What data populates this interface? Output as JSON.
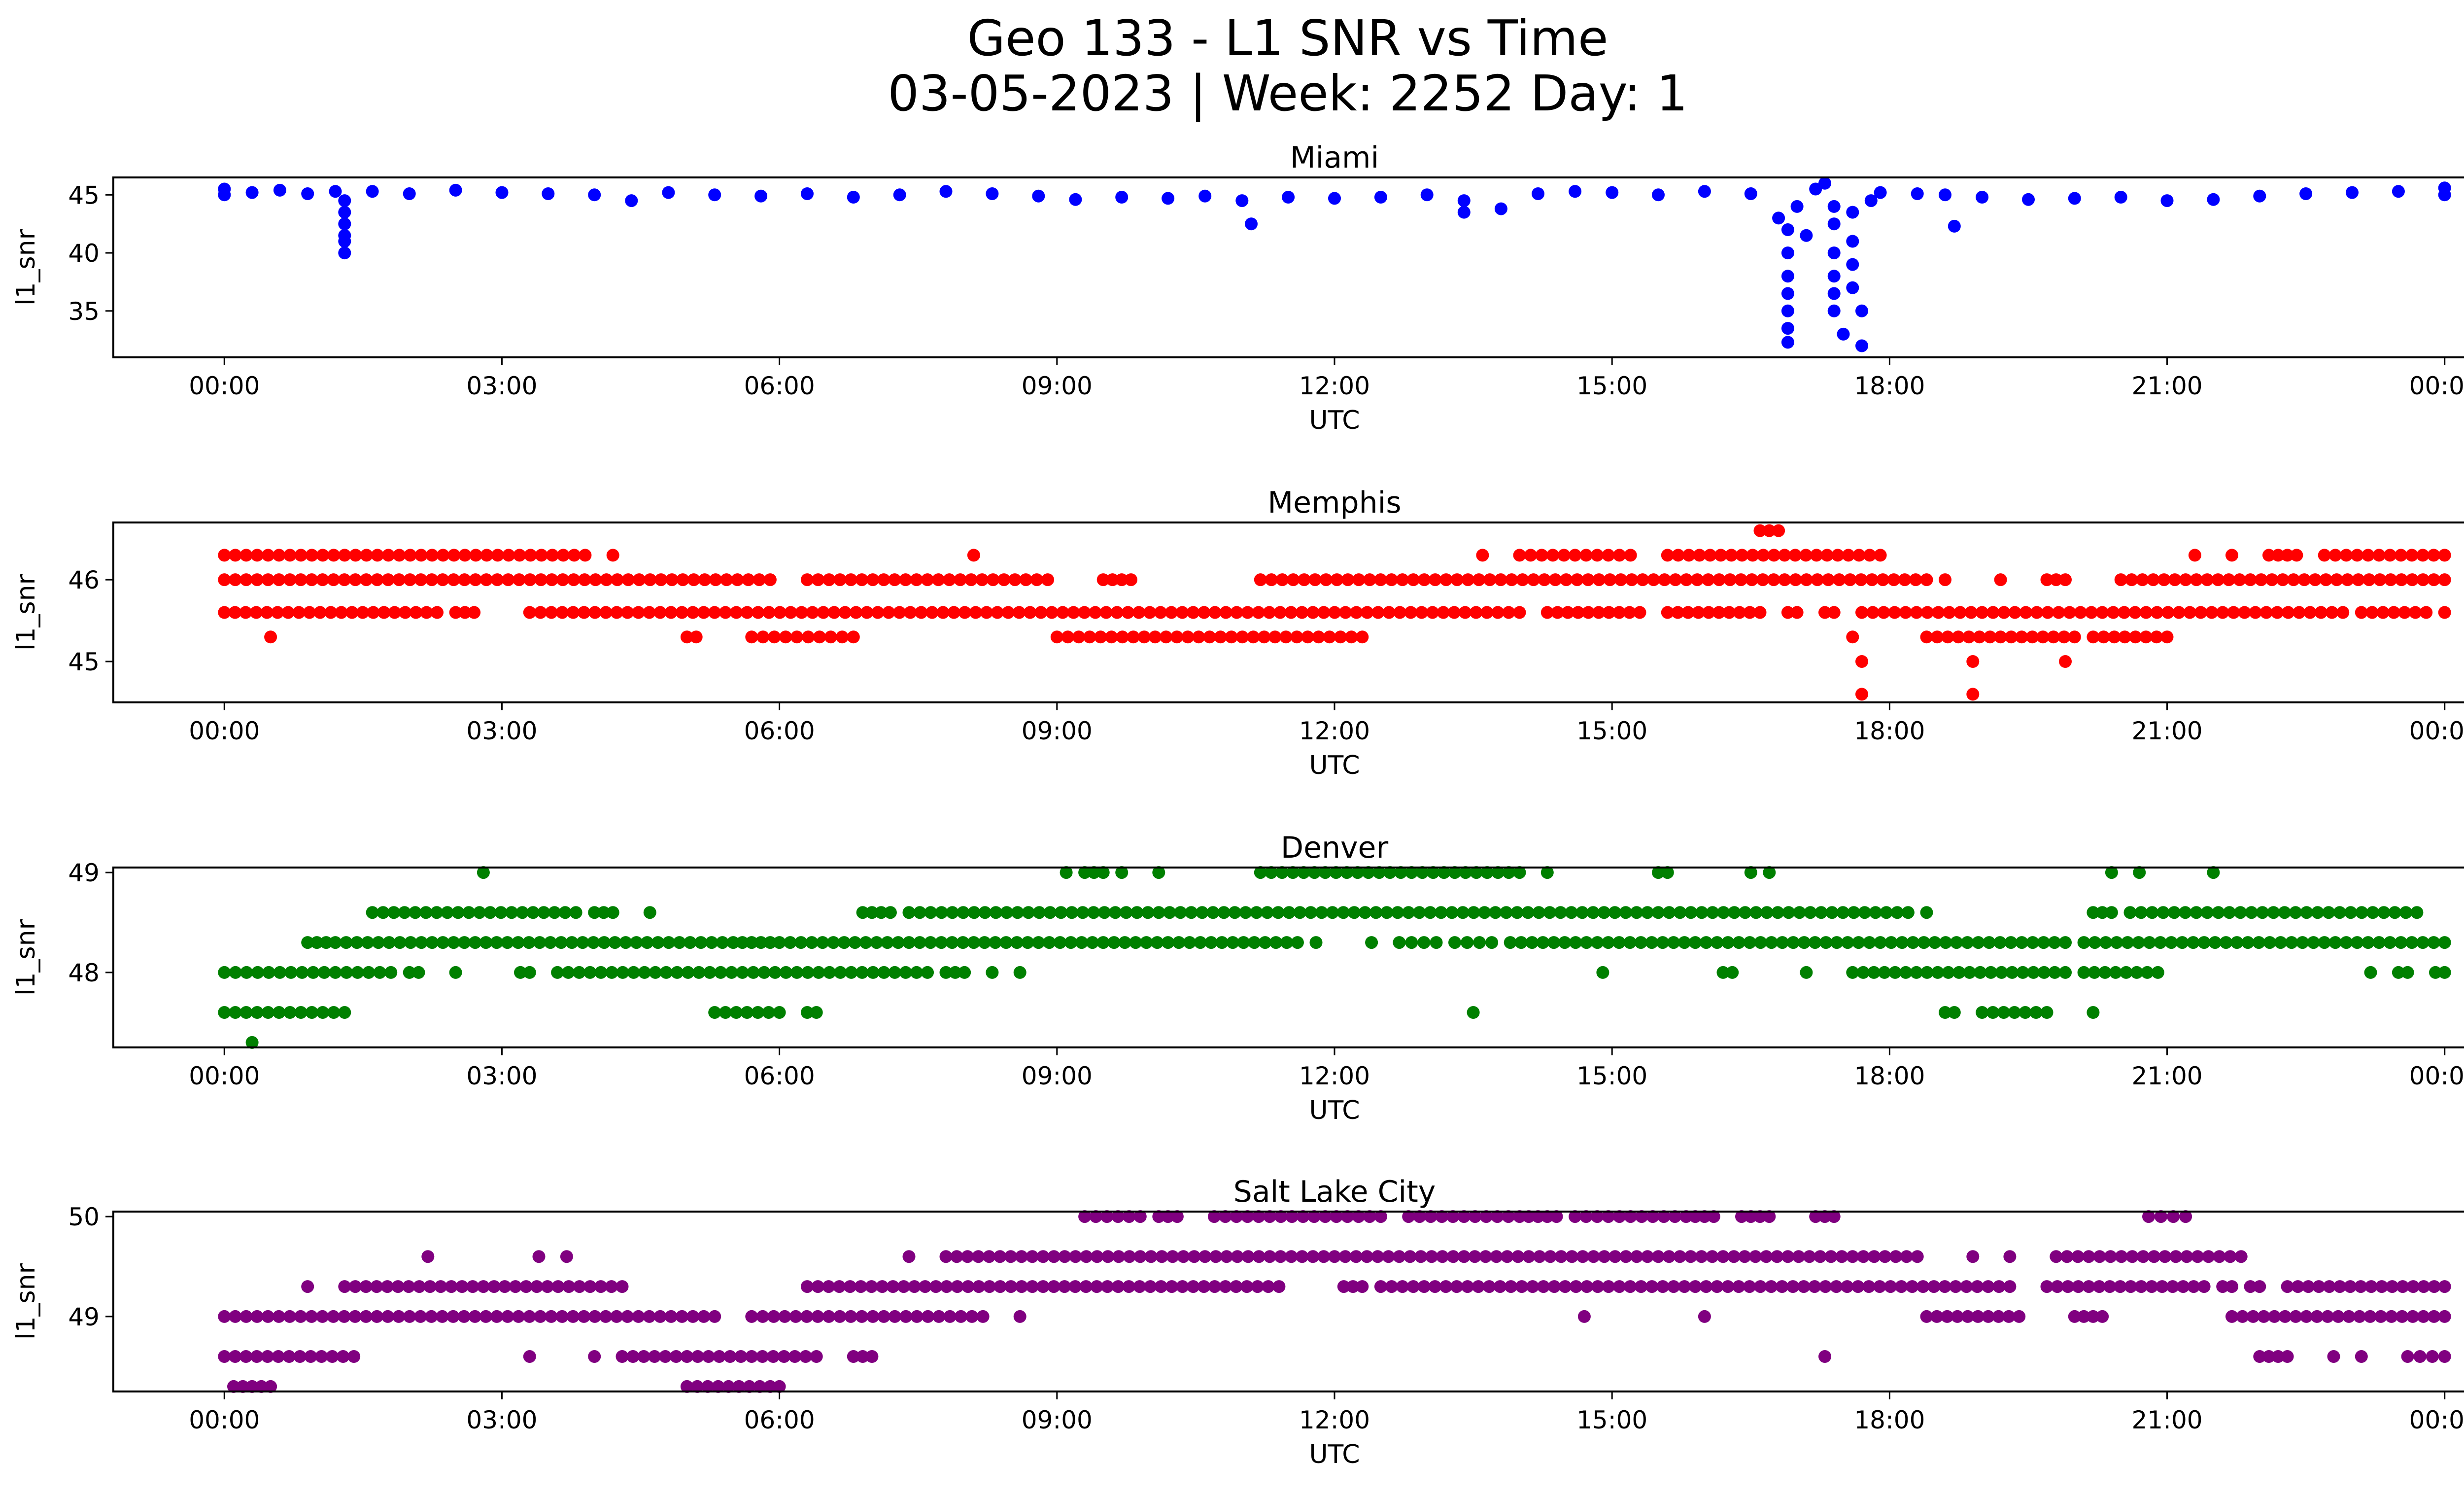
{
  "title": {
    "line1": "Geo 133 - L1 SNR vs Time",
    "line2": "03-05-2023 | Week: 2252 Day: 1"
  },
  "chart_data": [
    {
      "type": "scatter",
      "title": "Miami",
      "xlabel": "UTC",
      "ylabel": "l1_snr",
      "color": "#0000ff",
      "x_ticks": [
        "00:00",
        "03:00",
        "06:00",
        "09:00",
        "12:00",
        "15:00",
        "18:00",
        "21:00",
        "00:00"
      ],
      "xlim": [
        -1.2,
        25.2
      ],
      "ylim": [
        31.0,
        46.5
      ],
      "y_ticks": [
        35,
        40,
        45
      ],
      "points": [
        [
          0,
          45.5
        ],
        [
          0,
          45.0
        ],
        [
          0.3,
          45.2
        ],
        [
          0.6,
          45.4
        ],
        [
          0.9,
          45.1
        ],
        [
          1.2,
          45.3
        ],
        [
          1.3,
          44.5
        ],
        [
          1.3,
          43.5
        ],
        [
          1.3,
          42.5
        ],
        [
          1.3,
          41.5
        ],
        [
          1.3,
          41.0
        ],
        [
          1.3,
          40.0
        ],
        [
          1.6,
          45.3
        ],
        [
          2.0,
          45.1
        ],
        [
          2.5,
          45.4
        ],
        [
          3.0,
          45.2
        ],
        [
          3.5,
          45.1
        ],
        [
          4.0,
          45.0
        ],
        [
          4.4,
          44.5
        ],
        [
          4.8,
          45.2
        ],
        [
          5.3,
          45.0
        ],
        [
          5.8,
          44.9
        ],
        [
          6.3,
          45.1
        ],
        [
          6.8,
          44.8
        ],
        [
          7.3,
          45.0
        ],
        [
          7.8,
          45.3
        ],
        [
          8.3,
          45.1
        ],
        [
          8.8,
          44.9
        ],
        [
          9.2,
          44.6
        ],
        [
          9.7,
          44.8
        ],
        [
          10.2,
          44.7
        ],
        [
          10.6,
          44.9
        ],
        [
          11.0,
          44.5
        ],
        [
          11.1,
          42.5
        ],
        [
          11.5,
          44.8
        ],
        [
          12.0,
          44.7
        ],
        [
          12.5,
          44.8
        ],
        [
          13.0,
          45.0
        ],
        [
          13.4,
          43.5
        ],
        [
          13.4,
          44.5
        ],
        [
          13.8,
          43.8
        ],
        [
          14.2,
          45.1
        ],
        [
          14.6,
          45.3
        ],
        [
          15.0,
          45.2
        ],
        [
          15.5,
          45.0
        ],
        [
          16.0,
          45.3
        ],
        [
          16.5,
          45.1
        ],
        [
          16.8,
          43.0
        ],
        [
          16.9,
          42.0
        ],
        [
          16.9,
          40.0
        ],
        [
          16.9,
          38.0
        ],
        [
          16.9,
          36.5
        ],
        [
          16.9,
          35.0
        ],
        [
          16.9,
          33.5
        ],
        [
          16.9,
          32.3
        ],
        [
          17.0,
          44.0
        ],
        [
          17.1,
          41.5
        ],
        [
          17.2,
          45.5
        ],
        [
          17.3,
          46.0
        ],
        [
          17.4,
          44.0
        ],
        [
          17.4,
          42.5
        ],
        [
          17.4,
          40.0
        ],
        [
          17.4,
          38.0
        ],
        [
          17.4,
          36.5
        ],
        [
          17.4,
          35.0
        ],
        [
          17.5,
          33.0
        ],
        [
          17.6,
          43.5
        ],
        [
          17.6,
          41.0
        ],
        [
          17.6,
          39.0
        ],
        [
          17.6,
          37.0
        ],
        [
          17.7,
          35.0
        ],
        [
          17.7,
          32.0
        ],
        [
          17.8,
          44.5
        ],
        [
          17.9,
          45.2
        ],
        [
          18.3,
          45.1
        ],
        [
          18.6,
          45.0
        ],
        [
          18.7,
          42.3
        ],
        [
          19.0,
          44.8
        ],
        [
          19.5,
          44.6
        ],
        [
          20.0,
          44.7
        ],
        [
          20.5,
          44.8
        ],
        [
          21.0,
          44.5
        ],
        [
          21.5,
          44.6
        ],
        [
          22.0,
          44.9
        ],
        [
          22.5,
          45.1
        ],
        [
          23.0,
          45.2
        ],
        [
          23.5,
          45.3
        ],
        [
          24.0,
          45.0
        ],
        [
          24.0,
          45.6
        ]
      ]
    },
    {
      "type": "scatter",
      "title": "Memphis",
      "xlabel": "UTC",
      "ylabel": "l1_snr",
      "color": "#ff0000",
      "x_ticks": [
        "00:00",
        "03:00",
        "06:00",
        "09:00",
        "12:00",
        "15:00",
        "18:00",
        "21:00",
        "00:00"
      ],
      "xlim": [
        -1.2,
        25.2
      ],
      "ylim": [
        44.5,
        46.7
      ],
      "y_ticks": [
        45,
        46
      ],
      "levels": [
        44.6,
        45.0,
        45.3,
        45.6,
        46.0,
        46.3,
        46.6
      ],
      "segments": [
        [
          46.3,
          0.0,
          3.9
        ],
        [
          46.3,
          4.2,
          4.2
        ],
        [
          46.3,
          8.1,
          8.1
        ],
        [
          46.3,
          13.6,
          13.6
        ],
        [
          46.3,
          14.0,
          15.2
        ],
        [
          46.3,
          15.6,
          17.9
        ],
        [
          46.3,
          21.3,
          21.3
        ],
        [
          46.3,
          21.7,
          21.7
        ],
        [
          46.3,
          22.1,
          22.4
        ],
        [
          46.3,
          22.7,
          24.0
        ],
        [
          46.0,
          0.0,
          5.9
        ],
        [
          46.0,
          6.3,
          8.9
        ],
        [
          46.0,
          9.5,
          9.8
        ],
        [
          46.0,
          11.2,
          18.4
        ],
        [
          46.0,
          18.6,
          18.6
        ],
        [
          46.0,
          19.2,
          19.2
        ],
        [
          46.0,
          19.7,
          19.9
        ],
        [
          46.0,
          20.5,
          24.0
        ],
        [
          45.6,
          0.0,
          2.3
        ],
        [
          45.6,
          2.5,
          2.7
        ],
        [
          45.6,
          3.3,
          14.0
        ],
        [
          45.6,
          14.3,
          15.3
        ],
        [
          45.6,
          15.6,
          16.6
        ],
        [
          45.6,
          16.9,
          17.0
        ],
        [
          45.6,
          17.3,
          17.4
        ],
        [
          45.6,
          17.7,
          22.9
        ],
        [
          45.6,
          23.1,
          23.8
        ],
        [
          45.6,
          24.0,
          24.0
        ],
        [
          45.3,
          0.5,
          0.5
        ],
        [
          45.3,
          5.0,
          5.1
        ],
        [
          45.3,
          5.7,
          6.8
        ],
        [
          45.3,
          9.0,
          12.3
        ],
        [
          45.3,
          17.6,
          17.6
        ],
        [
          45.3,
          18.4,
          20.0
        ],
        [
          45.3,
          20.2,
          21.0
        ],
        [
          45.0,
          17.7,
          17.7
        ],
        [
          45.0,
          18.9,
          18.9
        ],
        [
          45.0,
          19.9,
          19.9
        ],
        [
          44.6,
          17.7,
          17.7
        ],
        [
          44.6,
          18.9,
          18.9
        ],
        [
          46.6,
          16.6,
          16.8
        ]
      ]
    },
    {
      "type": "scatter",
      "title": "Denver",
      "xlabel": "UTC",
      "ylabel": "l1_snr",
      "color": "#008000",
      "x_ticks": [
        "00:00",
        "03:00",
        "06:00",
        "09:00",
        "12:00",
        "15:00",
        "18:00",
        "21:00",
        "00:00"
      ],
      "xlim": [
        -1.2,
        25.2
      ],
      "ylim": [
        47.25,
        49.05
      ],
      "y_ticks": [
        48,
        49
      ],
      "levels": [
        47.3,
        47.6,
        48.0,
        48.3,
        48.6,
        49.0
      ],
      "segments": [
        [
          49.0,
          2.8,
          2.8
        ],
        [
          49.0,
          9.1,
          9.1
        ],
        [
          49.0,
          9.3,
          9.5
        ],
        [
          49.0,
          9.7,
          9.7
        ],
        [
          49.0,
          10.1,
          10.1
        ],
        [
          49.0,
          11.2,
          14.0
        ],
        [
          49.0,
          14.3,
          14.3
        ],
        [
          49.0,
          15.5,
          15.6
        ],
        [
          49.0,
          16.5,
          16.5
        ],
        [
          49.0,
          16.7,
          16.7
        ],
        [
          49.0,
          20.4,
          20.4
        ],
        [
          49.0,
          20.7,
          20.7
        ],
        [
          49.0,
          21.5,
          21.5
        ],
        [
          48.6,
          1.6,
          3.8
        ],
        [
          48.6,
          4.0,
          4.2
        ],
        [
          48.6,
          4.6,
          4.6
        ],
        [
          48.6,
          6.9,
          7.2
        ],
        [
          48.6,
          7.4,
          18.2
        ],
        [
          48.6,
          18.4,
          18.4
        ],
        [
          48.6,
          20.2,
          20.4
        ],
        [
          48.6,
          20.6,
          23.7
        ],
        [
          48.3,
          0.9,
          1.1
        ],
        [
          48.3,
          1.2,
          5.5
        ],
        [
          48.3,
          5.6,
          5.9
        ],
        [
          48.3,
          6.0,
          11.6
        ],
        [
          48.3,
          11.8,
          11.8
        ],
        [
          48.3,
          12.4,
          12.4
        ],
        [
          48.3,
          12.7,
          13.1
        ],
        [
          48.3,
          13.3,
          13.7
        ],
        [
          48.3,
          13.9,
          19.9
        ],
        [
          48.3,
          20.1,
          24.0
        ],
        [
          48.0,
          0.0,
          1.8
        ],
        [
          48.0,
          2.0,
          2.1
        ],
        [
          48.0,
          2.5,
          2.5
        ],
        [
          48.0,
          3.2,
          3.3
        ],
        [
          48.0,
          3.6,
          7.6
        ],
        [
          48.0,
          7.8,
          8.0
        ],
        [
          48.0,
          8.3,
          8.3
        ],
        [
          48.0,
          8.6,
          8.6
        ],
        [
          48.0,
          14.9,
          14.9
        ],
        [
          48.0,
          16.2,
          16.3
        ],
        [
          48.0,
          17.1,
          17.1
        ],
        [
          48.0,
          17.6,
          19.9
        ],
        [
          48.0,
          20.1,
          20.9
        ],
        [
          48.0,
          23.2,
          23.2
        ],
        [
          48.0,
          23.5,
          23.6
        ],
        [
          48.0,
          23.9,
          24.0
        ],
        [
          47.6,
          0.0,
          1.3
        ],
        [
          47.6,
          5.3,
          6.0
        ],
        [
          47.6,
          6.3,
          6.4
        ],
        [
          47.6,
          13.5,
          13.5
        ],
        [
          47.6,
          18.6,
          18.7
        ],
        [
          47.6,
          19.0,
          19.7
        ],
        [
          47.6,
          20.2,
          20.2
        ],
        [
          47.3,
          0.3,
          0.3
        ]
      ]
    },
    {
      "type": "scatter",
      "title": "Salt Lake City",
      "xlabel": "UTC",
      "ylabel": "l1_snr",
      "color": "#800080",
      "x_ticks": [
        "00:00",
        "03:00",
        "06:00",
        "09:00",
        "12:00",
        "15:00",
        "18:00",
        "21:00",
        "00:00"
      ],
      "xlim": [
        -1.2,
        25.2
      ],
      "ylim": [
        48.25,
        50.05
      ],
      "y_ticks": [
        49,
        50
      ],
      "levels": [
        48.3,
        48.6,
        49.0,
        49.3,
        49.6,
        50.0
      ],
      "segments": [
        [
          50.0,
          9.3,
          9.9
        ],
        [
          50.0,
          10.1,
          10.3
        ],
        [
          50.0,
          10.7,
          12.5
        ],
        [
          50.0,
          12.8,
          14.0
        ],
        [
          50.0,
          14.1,
          14.4
        ],
        [
          50.0,
          14.6,
          15.8
        ],
        [
          50.0,
          15.9,
          16.1
        ],
        [
          50.0,
          16.4,
          16.7
        ],
        [
          50.0,
          17.2,
          17.4
        ],
        [
          50.0,
          20.8,
          21.2
        ],
        [
          49.6,
          2.2,
          2.2
        ],
        [
          49.6,
          3.4,
          3.4
        ],
        [
          49.6,
          3.7,
          3.7
        ],
        [
          49.6,
          7.4,
          7.4
        ],
        [
          49.6,
          7.8,
          18.3
        ],
        [
          49.6,
          18.9,
          18.9
        ],
        [
          49.6,
          19.3,
          19.3
        ],
        [
          49.6,
          19.8,
          21.8
        ],
        [
          49.3,
          0.9,
          0.9
        ],
        [
          49.3,
          1.3,
          4.3
        ],
        [
          49.3,
          6.3,
          11.4
        ],
        [
          49.3,
          12.1,
          12.3
        ],
        [
          49.3,
          12.5,
          19.3
        ],
        [
          49.3,
          19.7,
          21.4
        ],
        [
          49.3,
          21.6,
          21.7
        ],
        [
          49.3,
          21.9,
          22.0
        ],
        [
          49.3,
          22.3,
          24.0
        ],
        [
          49.0,
          0.0,
          5.3
        ],
        [
          49.0,
          5.7,
          8.2
        ],
        [
          49.0,
          8.6,
          8.6
        ],
        [
          49.0,
          14.7,
          14.7
        ],
        [
          49.0,
          16.0,
          16.0
        ],
        [
          49.0,
          18.4,
          19.4
        ],
        [
          49.0,
          20.0,
          20.3
        ],
        [
          49.0,
          21.7,
          24.0
        ],
        [
          48.6,
          0.0,
          1.4
        ],
        [
          48.6,
          3.3,
          3.3
        ],
        [
          48.6,
          4.0,
          4.0
        ],
        [
          48.6,
          4.3,
          6.4
        ],
        [
          48.6,
          6.8,
          7.0
        ],
        [
          48.6,
          17.3,
          17.3
        ],
        [
          48.6,
          22.0,
          22.3
        ],
        [
          48.6,
          22.8,
          22.8
        ],
        [
          48.6,
          23.1,
          23.1
        ],
        [
          48.6,
          23.6,
          24.0
        ],
        [
          48.3,
          0.1,
          0.4
        ],
        [
          48.3,
          0.5,
          0.5
        ],
        [
          48.3,
          5.0,
          5.9
        ],
        [
          48.3,
          6.0,
          6.0
        ]
      ]
    }
  ]
}
